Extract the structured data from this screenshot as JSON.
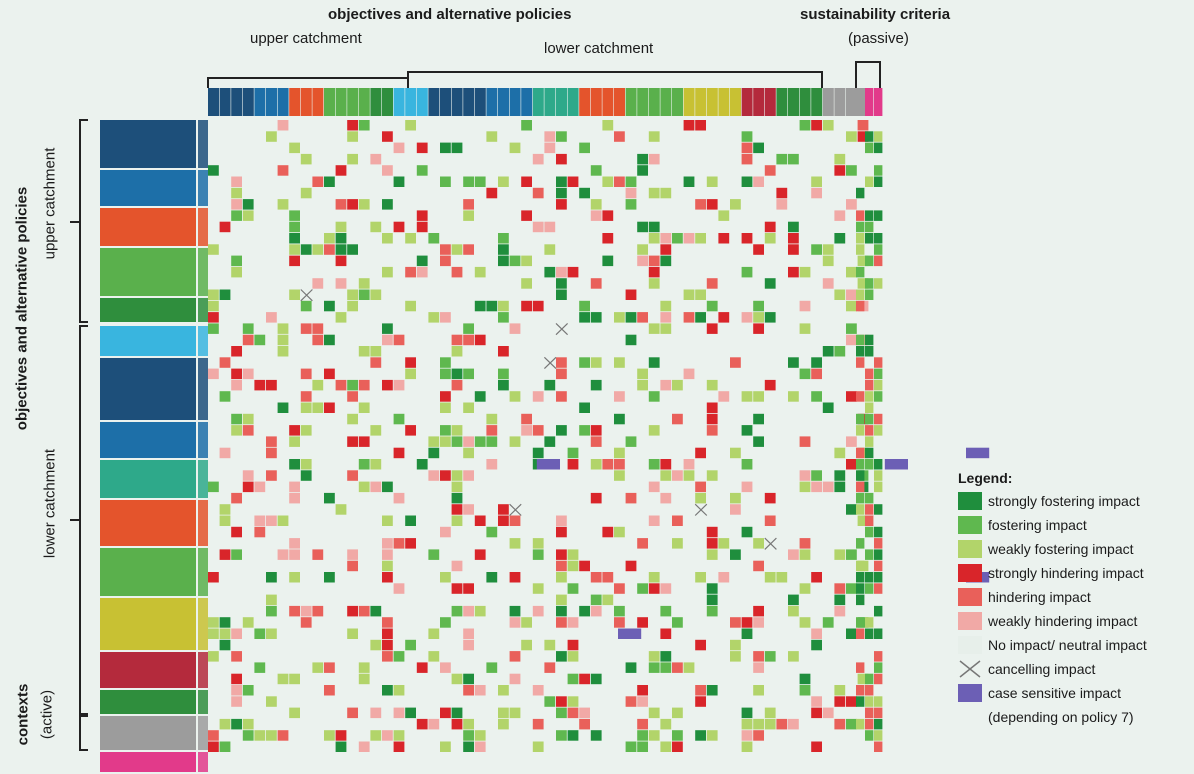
{
  "header": {
    "top_title": "objectives and alternative policies",
    "upper_label": "upper catchment",
    "lower_label": "lower catchment",
    "sust_title": "sustainability criteria",
    "sust_sub": "(passive)"
  },
  "side": {
    "main_label": "objectives and alternative policies",
    "upper_label": "upper catchment",
    "lower_label": "lower catchment",
    "contexts_label": "contexts",
    "contexts_sub": "(active)"
  },
  "legend": {
    "title": "Legend:",
    "items": [
      {
        "label": "strongly fostering impact",
        "color": "#1f8e3d"
      },
      {
        "label": "fostering impact",
        "color": "#5fb84f"
      },
      {
        "label": "weakly fostering impact",
        "color": "#b2d46a"
      },
      {
        "label": "strongly hindering impact",
        "color": "#d9252a"
      },
      {
        "label": "hindering impact",
        "color": "#e9605a"
      },
      {
        "label": "weakly hindering impact",
        "color": "#f1a9a6"
      },
      {
        "label": "No impact/ neutral impact",
        "color": "#e7efea"
      },
      {
        "label": "cancelling impact",
        "color": "none"
      },
      {
        "label": "case sensitive impact",
        "color": "#6c5fb5"
      },
      {
        "label": "(depending on policy 7)",
        "color": "none"
      }
    ]
  },
  "chart_data": {
    "type": "heatmap",
    "title": "objectives and alternative policies",
    "groups": [
      "upper catchment",
      "lower catchment",
      "sustainability criteria (passive)",
      "contexts (active)"
    ],
    "categories": [
      "strongly fostering impact",
      "fostering impact",
      "weakly fostering impact",
      "strongly hindering impact",
      "hindering impact",
      "weakly hindering impact",
      "No impact/ neutral impact",
      "cancelling impact",
      "case sensitive impact"
    ],
    "grid": {
      "rows": 56,
      "cols": 57
    }
  }
}
